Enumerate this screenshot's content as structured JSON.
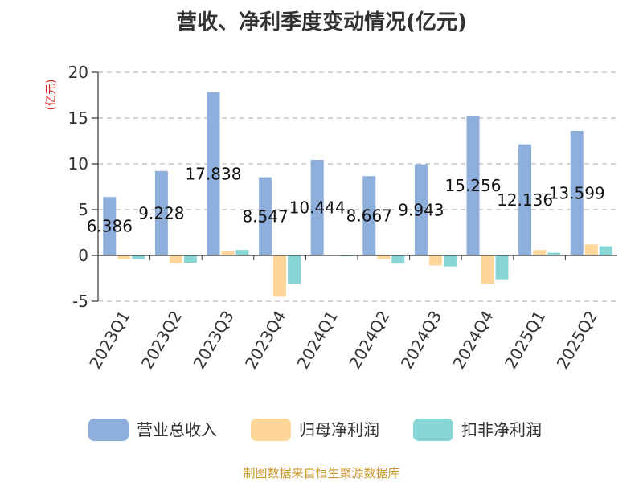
{
  "chart_data": {
    "type": "bar",
    "title": "营收、净利季度变动情况(亿元)",
    "unit_label": "(亿元)",
    "categories": [
      "2023Q1",
      "2023Q2",
      "2023Q3",
      "2023Q4",
      "2024Q1",
      "2024Q2",
      "2024Q3",
      "2024Q4",
      "2025Q1",
      "2025Q2"
    ],
    "series": [
      {
        "name": "营业总收入",
        "color": "#8eaedb",
        "values": [
          6.386,
          9.228,
          17.838,
          8.547,
          10.444,
          8.667,
          9.943,
          15.256,
          12.136,
          13.599
        ],
        "labels": [
          "6.386",
          "9.228",
          "17.838",
          "8.547",
          "10.444",
          "8.667",
          "9.943",
          "15.256",
          "12.136",
          "13.599"
        ]
      },
      {
        "name": "归母净利润",
        "color": "#fed699",
        "values": [
          -0.4,
          -0.9,
          0.5,
          -4.5,
          0.05,
          -0.4,
          -1.1,
          -3.1,
          0.6,
          1.2
        ]
      },
      {
        "name": "扣非净利润",
        "color": "#88d5d6",
        "values": [
          -0.4,
          -0.8,
          0.6,
          -3.1,
          -0.1,
          -0.9,
          -1.2,
          -2.6,
          0.3,
          1.0
        ]
      }
    ],
    "ylim": [
      -5,
      20
    ],
    "yticks": [
      -5,
      0,
      5,
      10,
      15,
      20
    ],
    "grid": true,
    "legend_position": "bottom"
  },
  "source_text": "制图数据来自恒生聚源数据库"
}
